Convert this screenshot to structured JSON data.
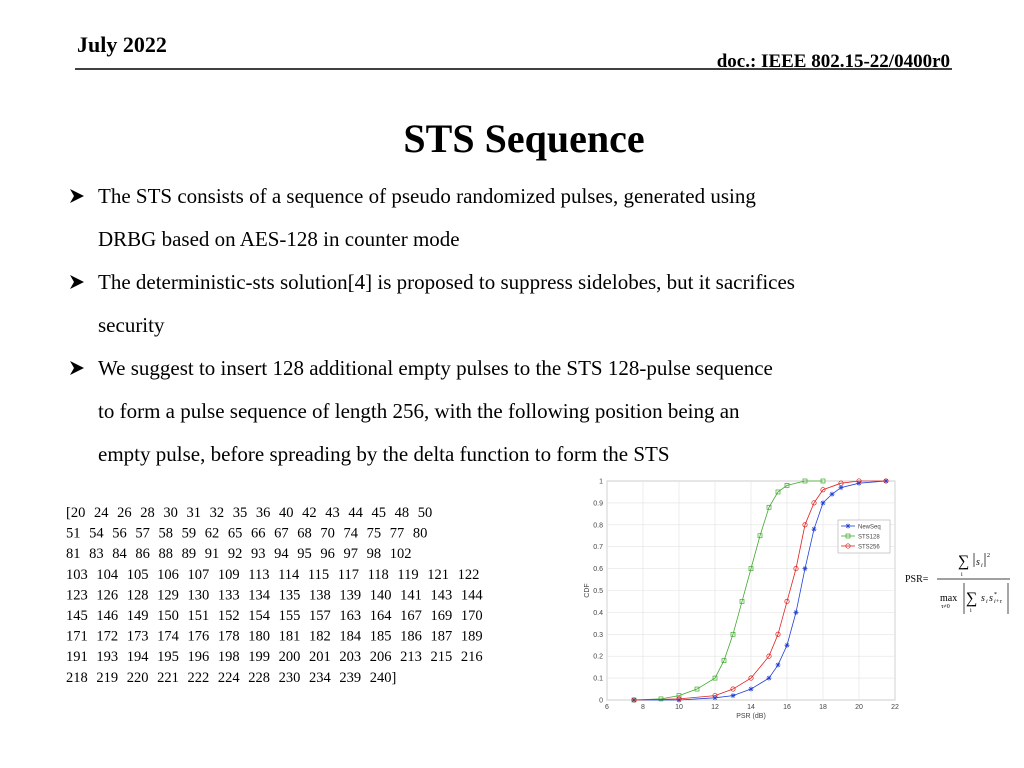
{
  "header": {
    "date": "July 2022",
    "doc": "doc.: IEEE 802.15-22/0400r0"
  },
  "title": "STS Sequence",
  "bullets": [
    {
      "lines": [
        "The STS consists of a sequence of pseudo randomized pulses, generated using",
        "DRBG based on AES-128 in counter mode"
      ]
    },
    {
      "lines": [
        "The deterministic-sts solution[4] is proposed to suppress sidelobes, but it sacrifices",
        "security"
      ]
    },
    {
      "lines": [
        "We suggest to insert 128 additional empty pulses to the STS 128-pulse sequence",
        "to form a pulse sequence of length 256, with the following position being an",
        "empty pulse, before spreading by the delta function to form the STS"
      ]
    }
  ],
  "positions": {
    "lines": [
      "[20 24 26 28 30 31 32 35 36 40 42 43 44 45 48 50",
      "51 54 56 57 58 59 62 65 66 67 68 70 74 75 77 80",
      "81 83 84 86 88 89 91 92 93 94 95 96 97 98 102",
      "103 104 105 106 107 109 113 114 115 117 118 119 121 122",
      "123 126 128 129 130 133 134 135 138 139 140 141 143 144",
      "145 146 149 150 151 152 154 155 157 163 164 167 169 170",
      "171 172 173 174 176 178 180 181 182 184 185 186 187 189",
      "191 193 194 195 196 198 199 200 201 203 206 213 215 216",
      "218 219 220 221 222 224 228 230 234 239 240]"
    ]
  },
  "formula": {
    "lhs": "PSR=",
    "sum": "∑",
    "var": "s",
    "sub_i": "i",
    "sup_2": "2",
    "op": "max",
    "op_sub": "τ≠0",
    "sub_shift": "i+τ",
    "conj": "*"
  },
  "chart_data": {
    "type": "line",
    "xlabel": "PSR (dB)",
    "ylabel": "CDF",
    "xlim": [
      6,
      22
    ],
    "xticks": [
      6,
      8,
      10,
      12,
      14,
      16,
      18,
      20,
      22
    ],
    "ylim": [
      0,
      1
    ],
    "yticks": [
      0,
      0.1,
      0.2,
      0.3,
      0.4,
      0.5,
      0.6,
      0.7,
      0.8,
      0.9,
      1
    ],
    "grid": true,
    "legend": "upper right",
    "series": [
      {
        "name": "NewSeq",
        "color": "#1f3fd6",
        "marker": "star",
        "x": [
          7.5,
          10,
          12,
          13,
          14,
          15,
          15.5,
          16,
          16.5,
          17,
          17.5,
          18,
          18.5,
          19,
          20,
          21.5
        ],
        "values": [
          0,
          0,
          0.01,
          0.02,
          0.05,
          0.1,
          0.16,
          0.25,
          0.4,
          0.6,
          0.78,
          0.9,
          0.94,
          0.97,
          0.99,
          1
        ]
      },
      {
        "name": "STS128",
        "color": "#3daa2a",
        "marker": "square",
        "x": [
          7.5,
          9,
          10,
          11,
          12,
          12.5,
          13,
          13.5,
          14,
          14.5,
          15,
          15.5,
          16,
          17,
          18
        ],
        "values": [
          0,
          0.005,
          0.02,
          0.05,
          0.1,
          0.18,
          0.3,
          0.45,
          0.6,
          0.75,
          0.88,
          0.95,
          0.98,
          1,
          1
        ]
      },
      {
        "name": "STS256",
        "color": "#e02020",
        "marker": "circle",
        "x": [
          7.5,
          10,
          12,
          13,
          14,
          15,
          15.5,
          16,
          16.5,
          17,
          17.5,
          18,
          19,
          20,
          21.5
        ],
        "values": [
          0,
          0.005,
          0.02,
          0.05,
          0.1,
          0.2,
          0.3,
          0.45,
          0.6,
          0.8,
          0.9,
          0.96,
          0.99,
          1,
          1
        ]
      }
    ]
  }
}
